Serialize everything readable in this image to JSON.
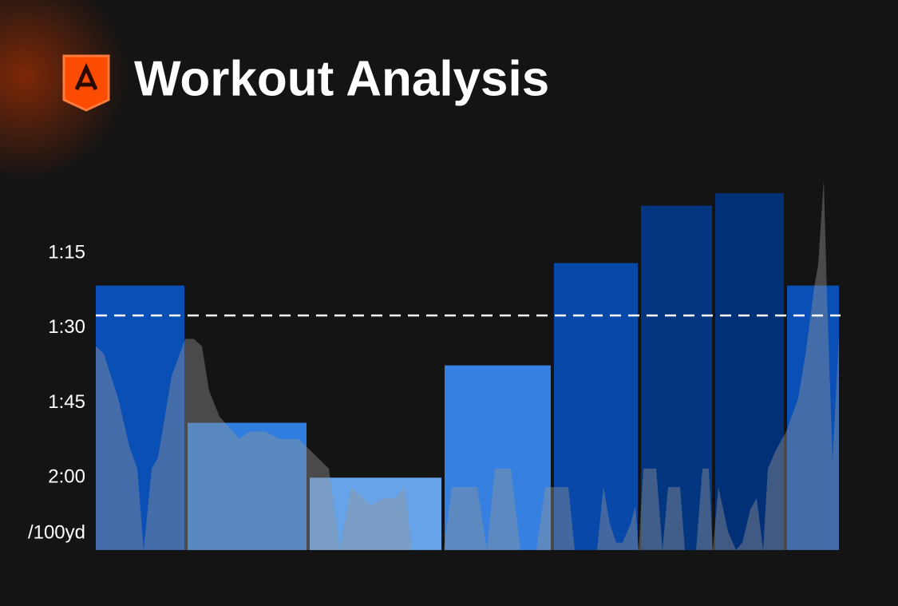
{
  "chart_data": {
    "type": "bar",
    "title": "Workout Analysis",
    "y_unit": "/100yd",
    "ylim": [
      134.5,
      60
    ],
    "yticks": [
      {
        "value": 75,
        "label": "1:15"
      },
      {
        "value": 90,
        "label": "1:30"
      },
      {
        "value": 105,
        "label": "1:45"
      },
      {
        "value": 120,
        "label": "2:00"
      }
    ],
    "xlim": [
      0,
      931
    ],
    "bar_start": [
      0,
      115,
      268,
      437,
      574,
      683,
      776,
      866
    ],
    "bar_end": [
      111,
      264,
      433,
      570,
      679,
      772,
      862,
      931
    ],
    "values": [
      81.5,
      109,
      120,
      97.5,
      77,
      65.5,
      63,
      81.5
    ],
    "colors": [
      "#0a4fb5",
      "#2f7ee0",
      "#66a3e8",
      "#3580e0",
      "#0848a8",
      "#033680",
      "#023077",
      "#0a4fb5"
    ],
    "reference_line": 87.5,
    "overlay": {
      "type": "area",
      "color": "rgba(150,150,150,0.42)",
      "y2lim": [
        0,
        100
      ],
      "x": [
        0,
        10,
        28,
        42,
        52,
        60,
        70,
        78,
        95,
        112,
        123,
        133,
        142,
        155,
        180,
        192,
        212,
        230,
        254,
        292,
        306,
        320,
        345,
        360,
        375,
        387,
        396,
        436,
        446,
        478,
        490,
        500,
        520,
        532,
        552,
        563,
        592,
        600,
        628,
        636,
        644,
        652,
        660,
        670,
        676,
        680,
        686,
        702,
        710,
        717,
        732,
        738,
        752,
        760,
        768,
        773,
        780,
        792,
        802,
        810,
        820,
        828,
        836,
        842,
        852,
        865,
        880,
        890,
        900,
        905,
        912,
        916,
        923,
        931
      ],
      "values": [
        55,
        53,
        41,
        28,
        22,
        0,
        22,
        25,
        47,
        57,
        57,
        55,
        43,
        36,
        30,
        32,
        32,
        30,
        30,
        22,
        0,
        17,
        12,
        14,
        14,
        17,
        0,
        0,
        17,
        17,
        0,
        22,
        22,
        0,
        0,
        17,
        17,
        0,
        0,
        17,
        7,
        2,
        2,
        7,
        12,
        0,
        22,
        22,
        0,
        17,
        17,
        0,
        0,
        22,
        22,
        0,
        17,
        5,
        0,
        2,
        11,
        14,
        0,
        22,
        27,
        32,
        41,
        54,
        71,
        77,
        100,
        69,
        24,
        58
      ]
    }
  }
}
